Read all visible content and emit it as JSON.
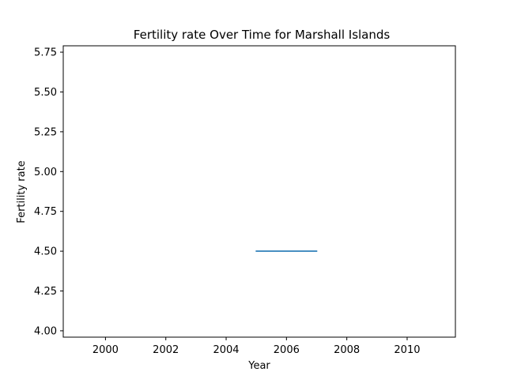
{
  "chart_data": {
    "type": "line",
    "title": "Fertility rate Over Time for Marshall Islands",
    "xlabel": "Year",
    "ylabel": "Fertility rate",
    "xlim": [
      1998.6,
      2011.6
    ],
    "ylim": [
      3.96,
      5.79
    ],
    "xticks": [
      2000,
      2002,
      2004,
      2006,
      2008,
      2010
    ],
    "xtick_labels": [
      "2000",
      "2002",
      "2004",
      "2006",
      "2008",
      "2010"
    ],
    "yticks": [
      4.0,
      4.25,
      4.5,
      4.75,
      5.0,
      5.25,
      5.5,
      5.75
    ],
    "ytick_labels": [
      "4.00",
      "4.25",
      "4.50",
      "4.75",
      "5.00",
      "5.25",
      "5.50",
      "5.75"
    ],
    "grid": false,
    "series": [
      {
        "name": "Fertility rate",
        "color": "#1f77b4",
        "x": [
          2005,
          2006,
          2007
        ],
        "y": [
          4.5,
          4.5,
          4.5
        ]
      }
    ]
  }
}
